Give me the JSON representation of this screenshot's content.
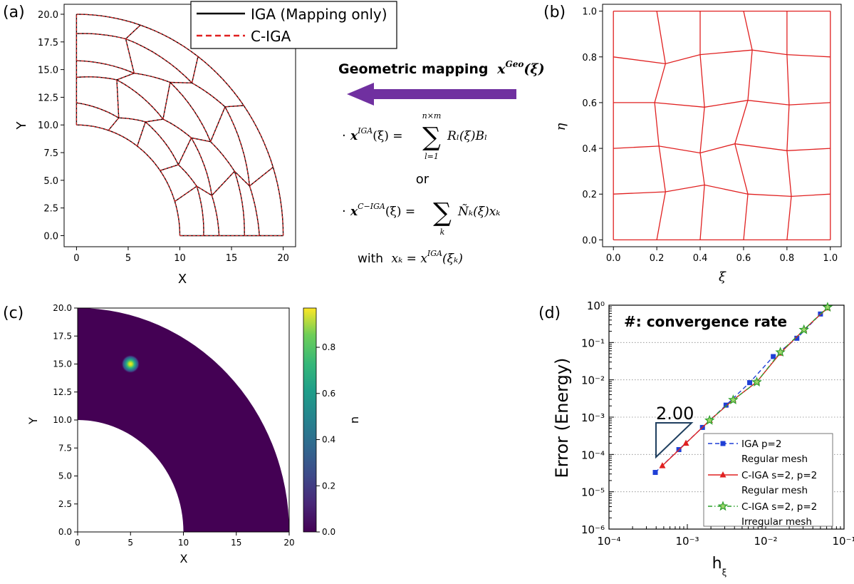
{
  "panels": {
    "a": "(a)",
    "b": "(b)",
    "c": "(c)",
    "d": "(d)"
  },
  "chart_data": [
    {
      "panel": "a",
      "type": "line",
      "xlabel": "X",
      "ylabel": "Y",
      "xlim": [
        -1.2,
        21.2
      ],
      "ylim": [
        -1,
        20.9
      ],
      "xticks": [
        "0",
        "5",
        "10",
        "15",
        "20"
      ],
      "yticks": [
        "0.0",
        "2.5",
        "5.0",
        "7.5",
        "10.0",
        "12.5",
        "15.0",
        "17.5",
        "20.0"
      ],
      "legend": [
        "IGA (Mapping only)",
        "C-IGA"
      ],
      "legend_placement": "top-center",
      "grid": false,
      "mesh": {
        "r_inner": 10,
        "r_outer": 20,
        "radial_nodes_regular": [
          10,
          12,
          14,
          16,
          18,
          20
        ],
        "angle_nodes_deg": [
          0,
          18,
          36,
          54,
          72,
          90
        ]
      }
    },
    {
      "panel": "b",
      "type": "line",
      "xlabel": "ξ",
      "ylabel": "η",
      "xlim": [
        -0.05,
        1.05
      ],
      "ylim": [
        -0.03,
        1.03
      ],
      "xticks": [
        "0.0",
        "0.2",
        "0.4",
        "0.6",
        "0.8",
        "1.0"
      ],
      "yticks": [
        "0.0",
        "0.2",
        "0.4",
        "0.6",
        "0.8",
        "1.0"
      ],
      "grid": false,
      "mesh_nodes": [
        [
          [
            0.0,
            0.0
          ],
          [
            0.2,
            0.0
          ],
          [
            0.4,
            0.0
          ],
          [
            0.6,
            0.0
          ],
          [
            0.8,
            0.0
          ],
          [
            1.0,
            0.0
          ]
        ],
        [
          [
            0.0,
            0.2
          ],
          [
            0.24,
            0.21
          ],
          [
            0.42,
            0.24
          ],
          [
            0.62,
            0.2
          ],
          [
            0.82,
            0.19
          ],
          [
            1.0,
            0.2
          ]
        ],
        [
          [
            0.0,
            0.4
          ],
          [
            0.21,
            0.41
          ],
          [
            0.4,
            0.38
          ],
          [
            0.56,
            0.42
          ],
          [
            0.8,
            0.39
          ],
          [
            1.0,
            0.4
          ]
        ],
        [
          [
            0.0,
            0.6
          ],
          [
            0.19,
            0.6
          ],
          [
            0.42,
            0.58
          ],
          [
            0.62,
            0.61
          ],
          [
            0.81,
            0.59
          ],
          [
            1.0,
            0.6
          ]
        ],
        [
          [
            0.0,
            0.8
          ],
          [
            0.24,
            0.77
          ],
          [
            0.4,
            0.81
          ],
          [
            0.64,
            0.83
          ],
          [
            0.8,
            0.81
          ],
          [
            1.0,
            0.8
          ]
        ],
        [
          [
            0.0,
            1.0
          ],
          [
            0.2,
            1.0
          ],
          [
            0.4,
            1.0
          ],
          [
            0.6,
            1.0
          ],
          [
            0.8,
            1.0
          ],
          [
            1.0,
            1.0
          ]
        ]
      ]
    },
    {
      "panel": "c",
      "type": "heatmap",
      "xlabel": "X",
      "ylabel": "Y",
      "xlim": [
        0,
        20
      ],
      "ylim": [
        0,
        20
      ],
      "xticks": [
        "0",
        "5",
        "10",
        "15",
        "20"
      ],
      "yticks": [
        "0.0",
        "2.5",
        "5.0",
        "7.5",
        "10.0",
        "12.5",
        "15.0",
        "17.5",
        "20.0"
      ],
      "colorbar_label": "u",
      "colorbar_ticks": [
        "0.0",
        "0.2",
        "0.4",
        "0.6",
        "0.8"
      ],
      "colorbar_range": [
        0,
        0.97
      ],
      "domain": {
        "r_inner": 10,
        "r_outer": 20
      },
      "peak": {
        "x": 5,
        "y": 15,
        "value": 0.97
      },
      "background_value": 0.0
    },
    {
      "panel": "d",
      "type": "line",
      "scale": "log-log",
      "xlabel": "h",
      "xlabel_sub": "ξ",
      "ylabel": "Error (Energy)",
      "title": "#: convergence rate",
      "xlim": [
        0.0001,
        0.1
      ],
      "ylim": [
        1e-06,
        1
      ],
      "xticks": [
        "10⁻⁴",
        "10⁻³",
        "10⁻²",
        "10⁻¹"
      ],
      "yticks": [
        "10⁻⁶",
        "10⁻⁵",
        "10⁻⁴",
        "10⁻³",
        "10⁻²",
        "10⁻¹",
        "10⁰"
      ],
      "grid": "horizontal dotted",
      "slope_label": "2.00",
      "legend_placement": "bottom-right",
      "series": [
        {
          "name": "IGA p=2",
          "name2": "Regular mesh",
          "color": "#1f3fd6",
          "marker": "square",
          "dash": "6,4",
          "x": [
            0.00039,
            0.00078,
            0.00156,
            0.00312,
            0.00625,
            0.0125,
            0.025,
            0.05
          ],
          "y": [
            3.3e-05,
            0.000135,
            0.00053,
            0.0021,
            0.0084,
            0.042,
            0.13,
            0.58
          ]
        },
        {
          "name": "C-IGA s=2, p=2",
          "name2": "Regular mesh",
          "color": "#e02020",
          "marker": "triangle",
          "dash": "",
          "x": [
            0.00048,
            0.00096,
            0.00193,
            0.00385,
            0.0077,
            0.0154,
            0.0308,
            0.0616
          ],
          "y": [
            5e-05,
            0.0002,
            0.00082,
            0.0029,
            0.0088,
            0.052,
            0.22,
            0.85
          ]
        },
        {
          "name": "C-IGA s=2, p=2",
          "name2": "Irregular mesh",
          "color": "#2ea02e",
          "marker": "star",
          "dash": "6,3,1.5,3",
          "x": [
            0.00192,
            0.00385,
            0.0077,
            0.0154,
            0.0308,
            0.0616
          ],
          "y": [
            0.00082,
            0.0029,
            0.0087,
            0.055,
            0.22,
            0.88
          ]
        }
      ]
    }
  ],
  "mapping": {
    "title": "Geometric mapping",
    "title_math_x": "x",
    "title_math_sup": "Geo",
    "title_math_arg": "(ξ)",
    "eq1_lhs_x": "x",
    "eq1_lhs_sup": "IGA",
    "eq1_lhs_arg": "(ξ) =",
    "eq1_sum_top": "n×m",
    "eq1_sum_bottom": "l=1",
    "eq1_rhs": "Rₗ(ξ)Bₗ",
    "or_text": "or",
    "eq2_lhs_x": "x",
    "eq2_lhs_sup": "C−IGA",
    "eq2_lhs_arg": "(ξ) =",
    "eq2_sum_bottom": "k",
    "eq2_rhs": "Ñₖ(ξ)xₖ",
    "with_text": "with",
    "with_expr": "xₖ = x",
    "with_sup": "IGA",
    "with_arg": "(ξₖ)",
    "bullet": "·",
    "arrow_color": "#7030a0"
  }
}
